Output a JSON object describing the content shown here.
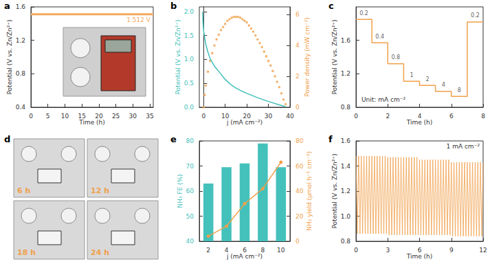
{
  "chart_data": [
    {
      "type": "line",
      "title": "a",
      "x_label": "Time (h)",
      "y_label": "Potential (V vs. Zn/Zn²⁺)",
      "x": [
        0,
        36
      ],
      "values": [
        1.512,
        1.512
      ],
      "color": "#f5a860",
      "xlim": [
        0,
        36
      ],
      "xticks": [
        0,
        5,
        10,
        15,
        20,
        25,
        30,
        35
      ],
      "ylim": [
        0.4,
        1.6
      ],
      "yticks": [
        0.4,
        0.8,
        1.2,
        1.6
      ],
      "annotations": [
        "1.512 V"
      ],
      "grid": false
    },
    {
      "type": "line",
      "title": "b",
      "x_label": "j (mA cm⁻²)",
      "y_label": "Potential (V vs. Zn/Zn²⁺)",
      "y2_label": "Power density (mW cm⁻²)",
      "xlim": [
        -2,
        40
      ],
      "xticks": [
        0,
        10,
        20,
        30,
        40
      ],
      "ylim": [
        0,
        2.1
      ],
      "yticks": [
        {
          "value": 0,
          "label": "0.0"
        },
        0.5,
        {
          "value": 1,
          "label": "1.0"
        },
        1.5,
        {
          "value": 2,
          "label": "2.0"
        }
      ],
      "y2lim": [
        0,
        6.5
      ],
      "y2ticks": [
        0,
        2,
        4,
        6
      ],
      "grid": false,
      "series": [
        {
          "type": "line",
          "color": "#3fbfb8",
          "x": [
            -0.5,
            -0.3,
            0,
            0.5,
            1,
            2,
            3,
            5,
            7,
            10,
            13,
            15,
            18,
            20,
            25,
            30,
            35,
            38
          ],
          "values": [
            2.0,
            1.8,
            1.6,
            1.45,
            1.32,
            1.15,
            1.02,
            0.86,
            0.75,
            0.58,
            0.46,
            0.4,
            0.33,
            0.29,
            0.2,
            0.12,
            0.05,
            0.01
          ]
        },
        {
          "type": "scatter",
          "axis": "y2",
          "color": "#f0a04b",
          "marker": "circle",
          "x": [
            0,
            0.5,
            1,
            2,
            3,
            4,
            5,
            6,
            7,
            8,
            9,
            10,
            11,
            12,
            13,
            14,
            15,
            16,
            17,
            18,
            19,
            20,
            21,
            22,
            23,
            24,
            25,
            26,
            27,
            28,
            29,
            30,
            31,
            32,
            33,
            34,
            35,
            36,
            37,
            38
          ],
          "values": [
            0,
            0.8,
            1.4,
            2.3,
            3.0,
            3.5,
            4.0,
            4.4,
            4.7,
            5.0,
            5.2,
            5.4,
            5.6,
            5.7,
            5.8,
            5.85,
            5.85,
            5.85,
            5.8,
            5.7,
            5.6,
            5.5,
            5.3,
            5.1,
            4.9,
            4.65,
            4.4,
            4.15,
            3.9,
            3.6,
            3.3,
            3.0,
            2.7,
            2.35,
            2.0,
            1.65,
            1.3,
            0.9,
            0.5,
            0.2
          ]
        }
      ]
    },
    {
      "type": "line",
      "title": "c",
      "x_label": "Time (h)",
      "y_label": "Potential (V vs. Zn/Zn²⁺)",
      "xlim": [
        0,
        8
      ],
      "xticks": [
        0,
        2,
        4,
        6,
        8
      ],
      "ylim": [
        0.8,
        2.0
      ],
      "yticks": [
        0.8,
        1.2,
        1.6
      ],
      "color": "#f0a04b",
      "grid": false,
      "segments": [
        {
          "label": "0.2",
          "start": 0,
          "end": 1,
          "value": 1.85
        },
        {
          "label": "0.4",
          "start": 1,
          "end": 2,
          "value": 1.57
        },
        {
          "label": "0.8",
          "start": 2,
          "end": 3,
          "value": 1.32
        },
        {
          "label": "1",
          "start": 3,
          "end": 4,
          "value": 1.11
        },
        {
          "label": "2",
          "start": 4,
          "end": 5,
          "value": 1.06
        },
        {
          "label": "4",
          "start": 5,
          "end": 6,
          "value": 0.99
        },
        {
          "label": "8",
          "start": 6,
          "end": 7,
          "value": 0.93
        },
        {
          "label": "0.2",
          "start": 7,
          "end": 8,
          "value": 1.82
        }
      ],
      "annotations": [
        "Unit: mA cm⁻²"
      ]
    },
    {
      "type": "bar",
      "title": "e",
      "x_label": "j (mA cm⁻²)",
      "y_label": "NH₃ FE (%)",
      "y2_label": "NH₃ yield (μmol h⁻¹ cm⁻²)",
      "categories": [
        2,
        4,
        6,
        8,
        10
      ],
      "ylim": [
        40,
        80
      ],
      "yticks": [
        40,
        50,
        60,
        70,
        80
      ],
      "y2lim": [
        0,
        80
      ],
      "y2ticks": [
        0,
        20,
        40,
        60,
        80
      ],
      "grid": false,
      "series": [
        {
          "type": "bar",
          "color": "#45c1bc",
          "values": [
            63,
            69.5,
            71,
            79,
            69.5
          ]
        },
        {
          "type": "line",
          "axis": "y2",
          "color": "#f0a04b",
          "marker": "circle",
          "values": [
            4,
            12,
            30,
            42,
            63
          ]
        }
      ]
    },
    {
      "type": "line",
      "title": "f",
      "x_label": "Time (h)",
      "y_label": "Potential (V vs. Zn/Zn²⁺)",
      "xlim": [
        0,
        12
      ],
      "xticks": [
        0,
        3,
        6,
        9,
        12
      ],
      "ylim": [
        0.8,
        1.6
      ],
      "yticks": [
        0.8,
        {
          "value": 1,
          "label": "1.0"
        },
        1.2,
        1.4,
        1.6
      ],
      "color": "#f0a04b",
      "grid": false,
      "annotations": [
        "1 mA cm⁻²"
      ],
      "x": [
        0,
        0.125,
        0.25,
        0.375,
        0.5,
        0.625,
        0.75,
        0.875,
        1,
        1.125,
        1.25,
        1.375,
        1.5,
        1.625,
        1.75,
        1.875,
        2,
        2.125,
        2.25,
        2.375,
        2.5,
        2.625,
        2.75,
        2.875,
        3,
        3.125,
        3.25,
        3.375,
        3.5,
        3.625,
        3.75,
        3.875,
        4,
        4.125,
        4.25,
        4.375,
        4.5,
        4.625,
        4.75,
        4.875,
        5,
        5.125,
        5.25,
        5.375,
        5.5,
        5.625,
        5.75,
        5.875,
        6,
        6.125,
        6.25,
        6.375,
        6.5,
        6.625,
        6.75,
        6.875,
        7,
        7.125,
        7.25,
        7.375,
        7.5,
        7.625,
        7.75,
        7.875,
        8,
        8.125,
        8.25,
        8.375,
        8.5,
        8.625,
        8.75,
        8.875,
        9,
        9.125,
        9.25,
        9.375,
        9.5,
        9.625,
        9.75,
        9.875,
        10,
        10.125,
        10.25,
        10.375,
        10.5,
        10.625,
        10.75,
        10.875,
        11,
        11.125,
        11.25,
        11.375,
        11.5,
        11.625,
        11.75,
        11.875,
        12
      ],
      "values": [
        1.48,
        0.86,
        1.48,
        0.86,
        1.48,
        0.86,
        1.48,
        0.86,
        1.48,
        0.86,
        1.48,
        0.86,
        1.48,
        0.86,
        1.48,
        0.86,
        1.48,
        0.86,
        1.48,
        0.86,
        1.48,
        0.86,
        1.48,
        0.86,
        1.47,
        0.85,
        1.47,
        0.85,
        1.47,
        0.85,
        1.47,
        0.85,
        1.47,
        0.85,
        1.47,
        0.85,
        1.47,
        0.85,
        1.47,
        0.85,
        1.47,
        0.85,
        1.47,
        0.85,
        1.47,
        0.85,
        1.47,
        0.85,
        1.45,
        0.85,
        1.45,
        0.85,
        1.45,
        0.85,
        1.45,
        0.85,
        1.45,
        0.85,
        1.45,
        0.85,
        1.45,
        0.85,
        1.45,
        0.85,
        1.45,
        0.85,
        1.45,
        0.85,
        1.45,
        0.85,
        1.45,
        0.85,
        1.43,
        0.84,
        1.43,
        0.84,
        1.43,
        0.84,
        1.43,
        0.84,
        1.43,
        0.84,
        1.43,
        0.84,
        1.43,
        0.84,
        1.43,
        0.84,
        1.43,
        0.84,
        1.43,
        0.84,
        1.43,
        0.84,
        1.43,
        0.84,
        1.42
      ]
    }
  ],
  "photos": {
    "title": "d",
    "captions": [
      "6 h",
      "12 h",
      "18 h",
      "24 h"
    ]
  }
}
